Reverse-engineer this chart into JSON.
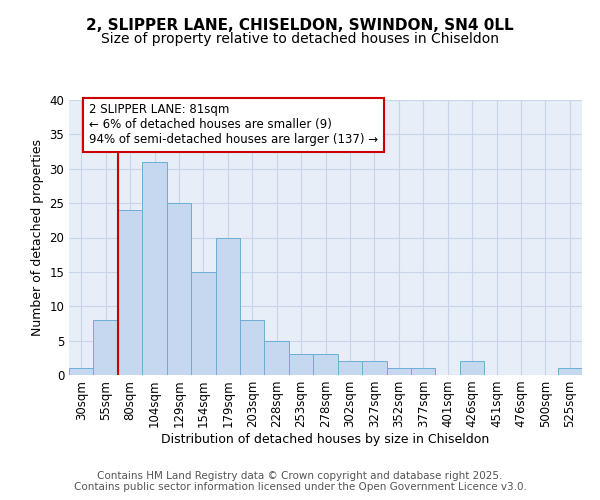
{
  "title_line1": "2, SLIPPER LANE, CHISELDON, SWINDON, SN4 0LL",
  "title_line2": "Size of property relative to detached houses in Chiseldon",
  "xlabel": "Distribution of detached houses by size in Chiseldon",
  "ylabel": "Number of detached properties",
  "categories": [
    "30sqm",
    "55sqm",
    "80sqm",
    "104sqm",
    "129sqm",
    "154sqm",
    "179sqm",
    "203sqm",
    "228sqm",
    "253sqm",
    "278sqm",
    "302sqm",
    "327sqm",
    "352sqm",
    "377sqm",
    "401sqm",
    "426sqm",
    "451sqm",
    "476sqm",
    "500sqm",
    "525sqm"
  ],
  "values": [
    1,
    8,
    24,
    31,
    25,
    15,
    20,
    8,
    5,
    3,
    3,
    2,
    2,
    1,
    1,
    0,
    2,
    0,
    0,
    0,
    1
  ],
  "bar_color": "#c5d8f0",
  "bar_edge_color": "#6baed6",
  "vline_color": "#cc0000",
  "vline_x_index": 2,
  "annotation_text": "2 SLIPPER LANE: 81sqm\n← 6% of detached houses are smaller (9)\n94% of semi-detached houses are larger (137) →",
  "annotation_box_facecolor": "#ffffff",
  "annotation_box_edgecolor": "#cc0000",
  "ylim": [
    0,
    40
  ],
  "yticks": [
    0,
    5,
    10,
    15,
    20,
    25,
    30,
    35,
    40
  ],
  "grid_color": "#c8d4e8",
  "plot_bg_color": "#e8eef8",
  "fig_bg_color": "#ffffff",
  "footer_text": "Contains HM Land Registry data © Crown copyright and database right 2025.\nContains public sector information licensed under the Open Government Licence v3.0.",
  "title_fontsize": 11,
  "subtitle_fontsize": 10,
  "axis_label_fontsize": 9,
  "tick_fontsize": 8.5,
  "annotation_fontsize": 8.5,
  "footer_fontsize": 7.5
}
